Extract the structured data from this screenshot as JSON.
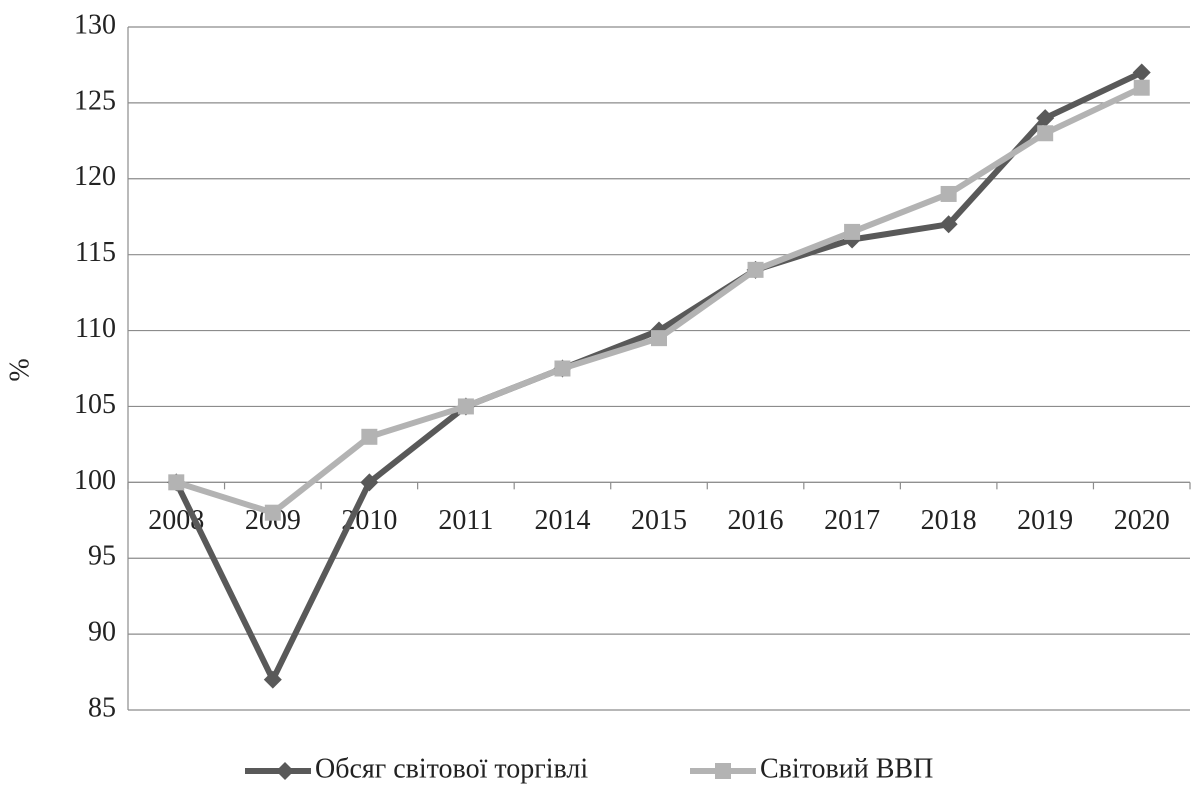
{
  "chart_data": {
    "type": "line",
    "y_label": "%",
    "categories": [
      "2008",
      "2009",
      "2010",
      "2011",
      "2014",
      "2015",
      "2016",
      "2017",
      "2018",
      "2019",
      "2020"
    ],
    "series": [
      {
        "name": "Обсяг світової торгівлі",
        "color": "#595959",
        "marker": "diamond",
        "values": [
          100,
          87,
          100,
          105,
          107.5,
          110,
          114,
          116,
          117,
          124,
          127
        ]
      },
      {
        "name": "Світовий ВВП",
        "color": "#b3b3b3",
        "marker": "square",
        "values": [
          100,
          98,
          103,
          105,
          107.5,
          109.5,
          114,
          116.5,
          119,
          123,
          126
        ]
      }
    ],
    "ylim": [
      85,
      130
    ],
    "yticks": [
      85,
      90,
      95,
      100,
      105,
      110,
      115,
      120,
      125,
      130
    ],
    "x_axis_crosses": 100,
    "grid": true,
    "legend": "bottom"
  }
}
